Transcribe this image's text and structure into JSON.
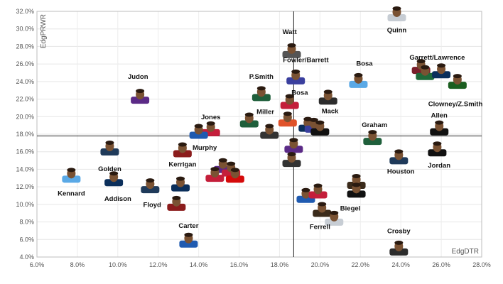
{
  "chart_data": {
    "type": "scatter",
    "title": "",
    "xlabel": "EdgDTR",
    "ylabel": "EdgPRWR",
    "xlim": [
      6.0,
      28.0
    ],
    "ylim": [
      4.0,
      32.0
    ],
    "x_ticks": [
      "6.0%",
      "8.0%",
      "10.0%",
      "12.0%",
      "14.0%",
      "16.0%",
      "18.0%",
      "20.0%",
      "22.0%",
      "24.0%",
      "26.0%",
      "28.0%"
    ],
    "y_ticks": [
      "4.0%",
      "6.0%",
      "8.0%",
      "10.0%",
      "12.0%",
      "14.0%",
      "16.0%",
      "18.0%",
      "20.0%",
      "22.0%",
      "24.0%",
      "26.0%",
      "28.0%",
      "30.0%",
      "32.0%"
    ],
    "x_tick_values": [
      6,
      8,
      10,
      12,
      14,
      16,
      18,
      20,
      22,
      24,
      26,
      28
    ],
    "y_tick_values": [
      4,
      6,
      8,
      10,
      12,
      14,
      16,
      18,
      20,
      22,
      24,
      26,
      28,
      30,
      32
    ],
    "ref_lines": {
      "x": 18.7,
      "y": 17.8
    },
    "points": [
      {
        "x": 23.8,
        "y": 31.6,
        "color": "#c7cdd4"
      },
      {
        "x": 18.6,
        "y": 27.4,
        "color": "#555555"
      },
      {
        "x": 18.8,
        "y": 24.4,
        "color": "#3a3f9e"
      },
      {
        "x": 21.9,
        "y": 24.0,
        "color": "#5aa9e6"
      },
      {
        "x": 25.0,
        "y": 25.6,
        "color": "#7a1f2b"
      },
      {
        "x": 25.2,
        "y": 24.9,
        "color": "#1f6a3a"
      },
      {
        "x": 26.0,
        "y": 25.1,
        "color": "#0b2f5b"
      },
      {
        "x": 26.8,
        "y": 23.9,
        "color": "#1b5e20"
      },
      {
        "x": 11.1,
        "y": 22.2,
        "color": "#5b2a86"
      },
      {
        "x": 17.1,
        "y": 22.5,
        "color": "#1f5f3b"
      },
      {
        "x": 18.5,
        "y": 21.6,
        "color": "#c41e3a"
      },
      {
        "x": 20.4,
        "y": 22.1,
        "color": "#2c2c2c"
      },
      {
        "x": 16.5,
        "y": 19.5,
        "color": "#1f5f3b"
      },
      {
        "x": 18.4,
        "y": 19.6,
        "color": "#e0532b"
      },
      {
        "x": 19.4,
        "y": 19.0,
        "color": "#0b2f5b"
      },
      {
        "x": 19.7,
        "y": 18.9,
        "color": "#3a3f9e"
      },
      {
        "x": 20.0,
        "y": 18.6,
        "color": "#111111"
      },
      {
        "x": 14.6,
        "y": 18.5,
        "color": "#c41e3a"
      },
      {
        "x": 14.0,
        "y": 18.2,
        "color": "#1f5ab0"
      },
      {
        "x": 17.5,
        "y": 18.2,
        "color": "#333333"
      },
      {
        "x": 18.7,
        "y": 16.6,
        "color": "#5b2a86"
      },
      {
        "x": 25.9,
        "y": 18.6,
        "color": "#111111"
      },
      {
        "x": 22.6,
        "y": 17.5,
        "color": "#1f5f3b"
      },
      {
        "x": 9.6,
        "y": 16.3,
        "color": "#1f3a5a"
      },
      {
        "x": 13.2,
        "y": 16.1,
        "color": "#8b1c1c"
      },
      {
        "x": 18.6,
        "y": 15.0,
        "color": "#333333"
      },
      {
        "x": 23.9,
        "y": 15.3,
        "color": "#1f3a5a"
      },
      {
        "x": 25.8,
        "y": 16.2,
        "color": "#111111"
      },
      {
        "x": 7.7,
        "y": 13.2,
        "color": "#5aa9e6"
      },
      {
        "x": 9.8,
        "y": 12.8,
        "color": "#0b2f5b"
      },
      {
        "x": 15.2,
        "y": 14.3,
        "color": "#5b2a86"
      },
      {
        "x": 15.6,
        "y": 13.9,
        "color": "#c41e3a"
      },
      {
        "x": 14.8,
        "y": 13.3,
        "color": "#c41e3a"
      },
      {
        "x": 15.8,
        "y": 13.2,
        "color": "#d50a0a"
      },
      {
        "x": 11.6,
        "y": 12.0,
        "color": "#1f3a5a"
      },
      {
        "x": 13.1,
        "y": 12.2,
        "color": "#0b2f5b"
      },
      {
        "x": 12.9,
        "y": 10.0,
        "color": "#8b1c1c"
      },
      {
        "x": 19.3,
        "y": 10.9,
        "color": "#1f5ab0"
      },
      {
        "x": 19.9,
        "y": 11.4,
        "color": "#c41e3a"
      },
      {
        "x": 21.8,
        "y": 12.5,
        "color": "#3a2a1a"
      },
      {
        "x": 21.8,
        "y": 11.5,
        "color": "#111111"
      },
      {
        "x": 20.1,
        "y": 9.3,
        "color": "#3a2a1a"
      },
      {
        "x": 20.7,
        "y": 8.3,
        "color": "#c7cdd4"
      },
      {
        "x": 13.5,
        "y": 5.8,
        "color": "#1f5ab0"
      },
      {
        "x": 23.9,
        "y": 4.9,
        "color": "#2c2c2c"
      }
    ],
    "labels": [
      {
        "text": "Quinn",
        "x": 23.8,
        "y": 29.6
      },
      {
        "text": "Watt",
        "x": 18.5,
        "y": 29.4
      },
      {
        "text": "Fowler/Barrett",
        "x": 19.3,
        "y": 26.2
      },
      {
        "text": "Garrett/Lawrence",
        "x": 25.8,
        "y": 26.5
      },
      {
        "text": "Bosa",
        "x": 22.2,
        "y": 25.8
      },
      {
        "text": "Judon",
        "x": 11.0,
        "y": 24.3
      },
      {
        "text": "P.Smith",
        "x": 17.1,
        "y": 24.3
      },
      {
        "text": "Bosa",
        "x": 19.0,
        "y": 22.5
      },
      {
        "text": "Clowney/Z.Smith",
        "x": 26.7,
        "y": 21.2
      },
      {
        "text": "Mack",
        "x": 20.5,
        "y": 20.4
      },
      {
        "text": "Miller",
        "x": 17.3,
        "y": 20.3
      },
      {
        "text": "Jones",
        "x": 14.6,
        "y": 19.7
      },
      {
        "text": "Allen",
        "x": 25.9,
        "y": 19.9
      },
      {
        "text": "Graham",
        "x": 22.7,
        "y": 18.8
      },
      {
        "text": "Murphy",
        "x": 14.3,
        "y": 16.2
      },
      {
        "text": "Kerrigan",
        "x": 13.2,
        "y": 14.3
      },
      {
        "text": "Golden",
        "x": 9.6,
        "y": 13.8
      },
      {
        "text": "Jordan",
        "x": 25.9,
        "y": 14.2
      },
      {
        "text": "Houston",
        "x": 24.0,
        "y": 13.5
      },
      {
        "text": "Kennard",
        "x": 7.7,
        "y": 11.0
      },
      {
        "text": "Addison",
        "x": 10.0,
        "y": 10.4
      },
      {
        "text": "Floyd",
        "x": 11.7,
        "y": 9.7
      },
      {
        "text": "Biegel",
        "x": 21.5,
        "y": 9.3
      },
      {
        "text": "Ferrell",
        "x": 20.0,
        "y": 7.2
      },
      {
        "text": "Carter",
        "x": 13.5,
        "y": 7.3
      },
      {
        "text": "Crosby",
        "x": 23.9,
        "y": 6.7
      }
    ]
  }
}
